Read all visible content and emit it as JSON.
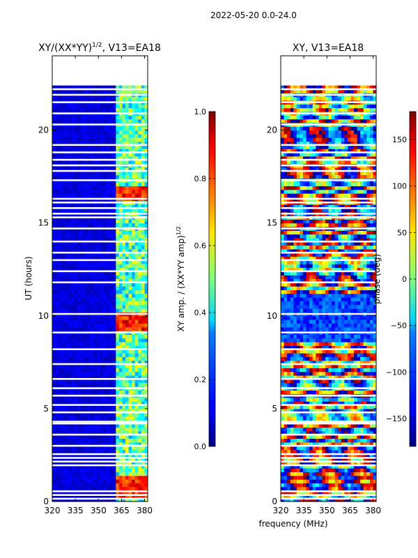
{
  "figure": {
    "suptitle": "2022-05-20 0.0-24.0",
    "shared_xlabel": "frequency (MHz)"
  },
  "chart_data": [
    {
      "type": "heatmap",
      "title_main": "XY/(XX*YY)",
      "title_sup": "1/2",
      "title_suffix": ", V13=EA18",
      "xlabel": "frequency (MHz)",
      "ylabel": "UT (hours)",
      "xlim": [
        320,
        382
      ],
      "ylim": [
        0,
        24
      ],
      "x_ticks": [
        320,
        335,
        350,
        365,
        380
      ],
      "y_ticks": [
        0,
        5,
        10,
        15,
        20
      ],
      "data_extent_hours": [
        0,
        22.4
      ],
      "quantity": "normalized XY amplitude",
      "colorbar": {
        "label_main": "XY amp. / (XX*YY amp)",
        "label_sup": "1/2",
        "range": [
          0.0,
          1.0
        ],
        "ticks": [
          "0.0",
          "0.2",
          "0.4",
          "0.6",
          "0.8",
          "1.0"
        ],
        "colormap": "jet"
      },
      "description_values": {
        "background_level": 0.05,
        "active_band_MHz": [
          362,
          381
        ],
        "active_band_level": 0.45,
        "strong_bursts_hours": [
          0.5,
          1.1,
          9.5,
          9.9,
          16.6
        ]
      }
    },
    {
      "type": "heatmap",
      "title_main": "XY, V13=EA18",
      "xlabel": "frequency (MHz)",
      "ylabel": "",
      "xlim": [
        320,
        382
      ],
      "ylim": [
        0,
        24
      ],
      "x_ticks": [
        320,
        335,
        350,
        365,
        380
      ],
      "y_ticks": [
        0,
        5,
        10,
        15,
        20
      ],
      "data_extent_hours": [
        0,
        22.4
      ],
      "quantity": "XY phase",
      "colorbar": {
        "label_main": "phase (deg)",
        "range": [
          -180,
          180
        ],
        "ticks": [
          "-150",
          "-100",
          "-50",
          "0",
          "50",
          "100",
          "150"
        ],
        "colormap": "jet"
      },
      "description_values": {
        "uniform_phase_hours": [
          8.6,
          11.2
        ],
        "uniform_phase_deg": -110
      }
    }
  ],
  "gap_rows_hours": [
    0.15,
    0.35,
    0.55,
    1.95,
    2.15,
    2.35,
    2.55,
    3.0,
    3.6,
    4.2,
    4.3,
    4.8,
    5.2,
    5.7,
    6.1,
    6.6,
    7.4,
    8.2,
    9.1,
    10.1,
    11.8,
    12.4,
    13.0,
    13.4,
    14.0,
    14.7,
    15.3,
    15.5,
    15.8,
    16.1,
    16.3,
    17.3,
    17.8,
    18.1,
    18.4,
    18.8,
    19.2,
    20.3,
    20.9,
    21.5,
    21.9,
    22.2
  ]
}
